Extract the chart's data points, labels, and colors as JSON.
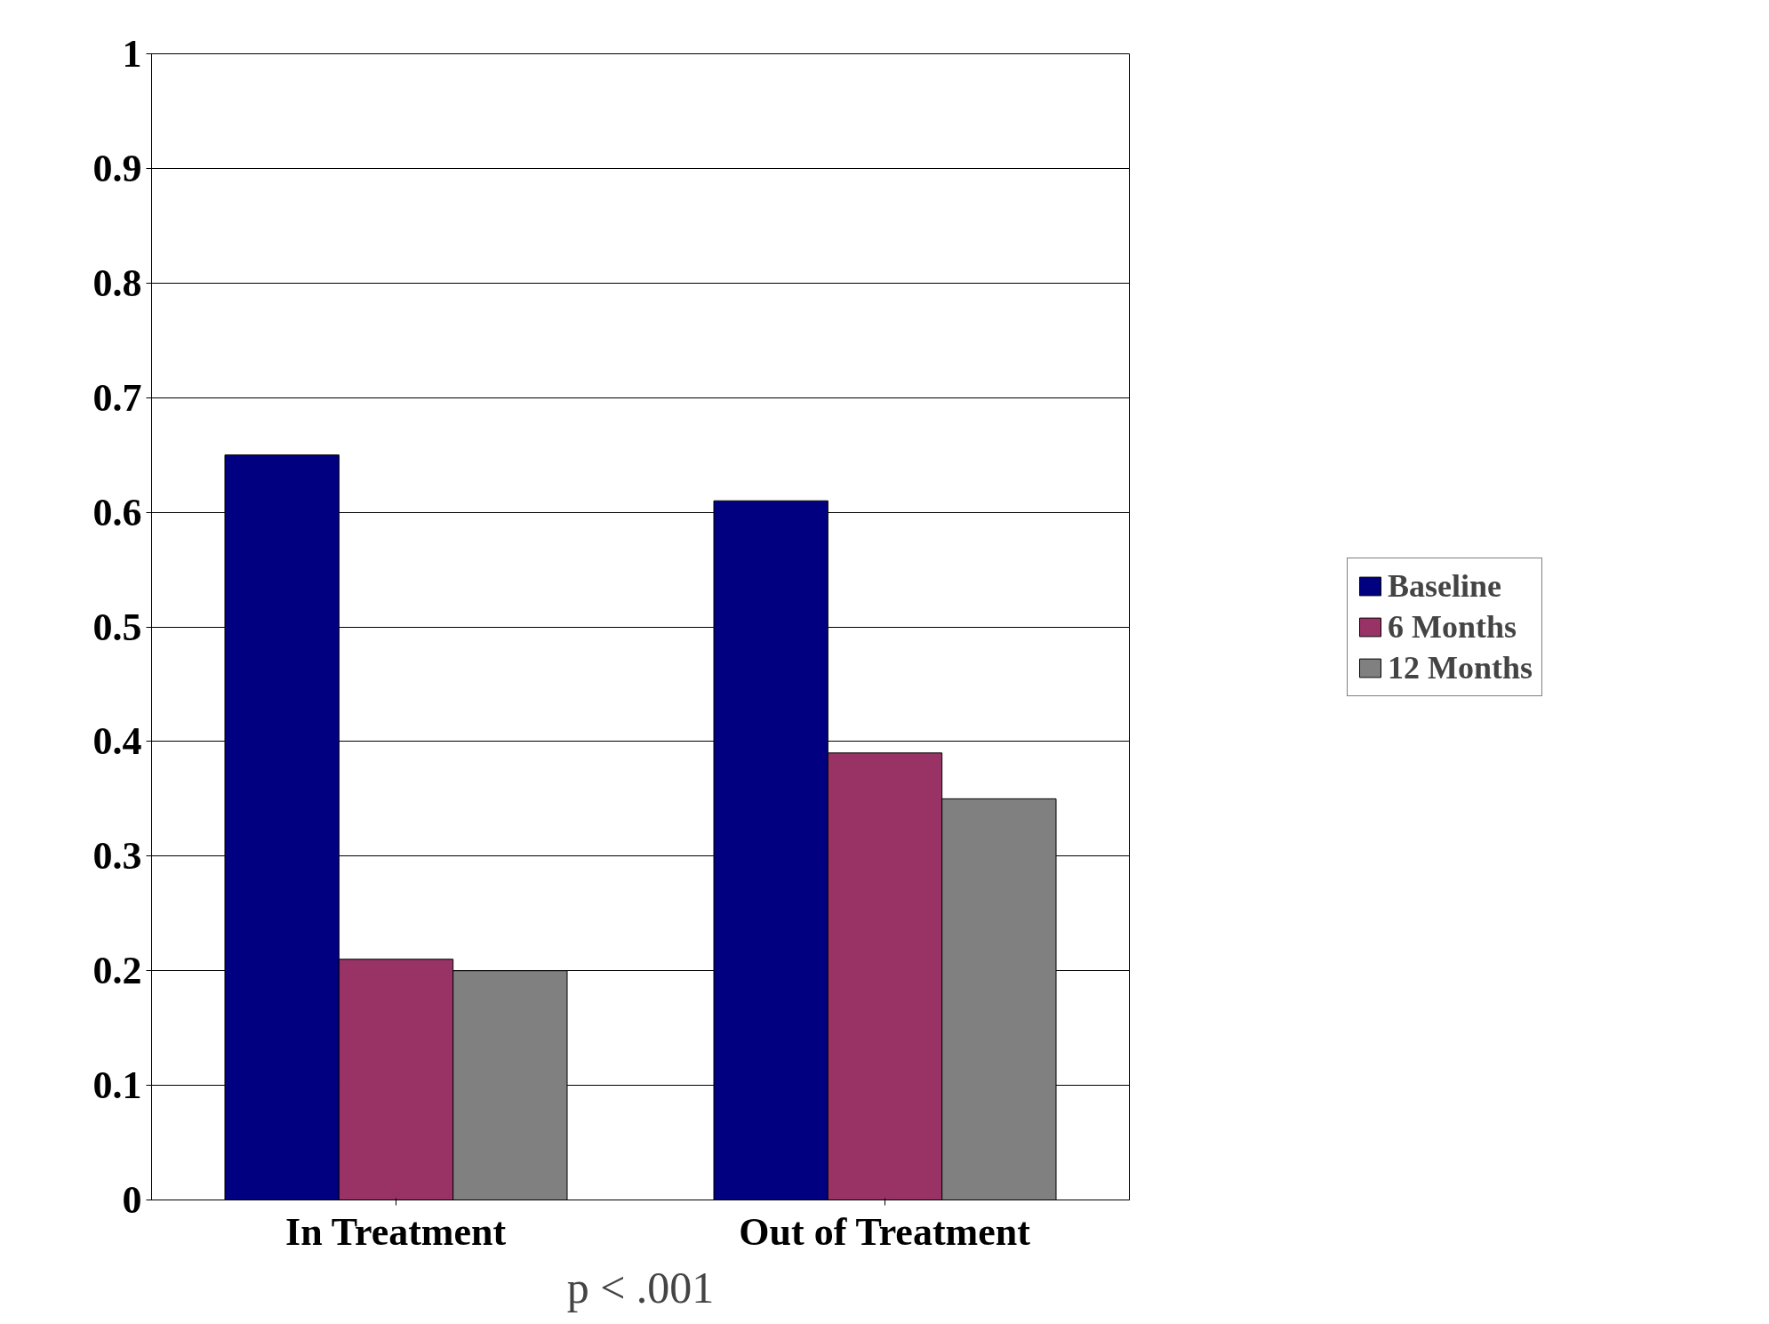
{
  "chart_data": {
    "type": "bar",
    "categories": [
      "In Treatment",
      "Out of Treatment"
    ],
    "series": [
      {
        "name": "Baseline",
        "color": "#000080",
        "values": [
          0.65,
          0.61
        ]
      },
      {
        "name": "6 Months",
        "color": "#993366",
        "values": [
          0.21,
          0.39
        ]
      },
      {
        "name": "12 Months",
        "color": "#808080",
        "values": [
          0.2,
          0.35
        ]
      }
    ],
    "ylim": [
      0,
      1
    ],
    "yticks": [
      0,
      0.1,
      0.2,
      0.3,
      0.4,
      0.5,
      0.6,
      0.7,
      0.8,
      0.9,
      1
    ],
    "grid": "y",
    "legend": "right",
    "annotations": [
      "p < .001"
    ]
  }
}
